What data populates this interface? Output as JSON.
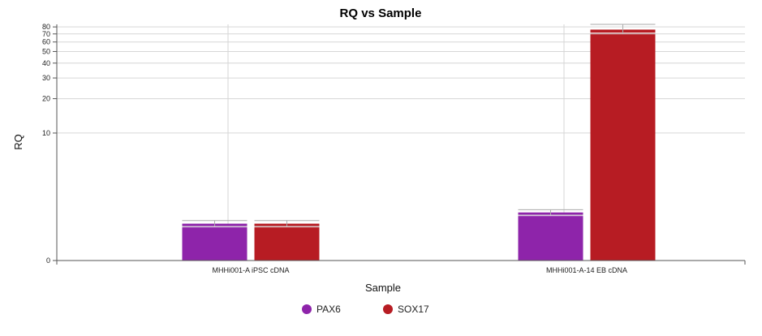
{
  "chart_data": {
    "type": "bar",
    "title": "RQ vs Sample",
    "xlabel": "Sample",
    "ylabel": "RQ",
    "y_scale": "log",
    "y_ticks": [
      0,
      10,
      20,
      30,
      40,
      50,
      60,
      70,
      80
    ],
    "y_tick_labels": [
      "0",
      "10",
      "20",
      "30",
      "40",
      "50",
      "60",
      "70",
      "80"
    ],
    "ylim": [
      0,
      84
    ],
    "grid": true,
    "legend_position": "bottom",
    "categories": [
      "MHHi001-A iPSC cDNA",
      "MHHi001-A-14 EB cDNA"
    ],
    "series": [
      {
        "name": "PAX6",
        "color": "#8e24aa",
        "values": [
          1.0,
          1.47
        ],
        "error_low": [
          0.9,
          1.35
        ],
        "error_high": [
          1.12,
          1.6
        ]
      },
      {
        "name": "SOX17",
        "color": "#b71c23",
        "values": [
          1.0,
          76.0
        ],
        "error_low": [
          0.9,
          70.0
        ],
        "error_high": [
          1.12,
          84.0
        ]
      }
    ]
  }
}
